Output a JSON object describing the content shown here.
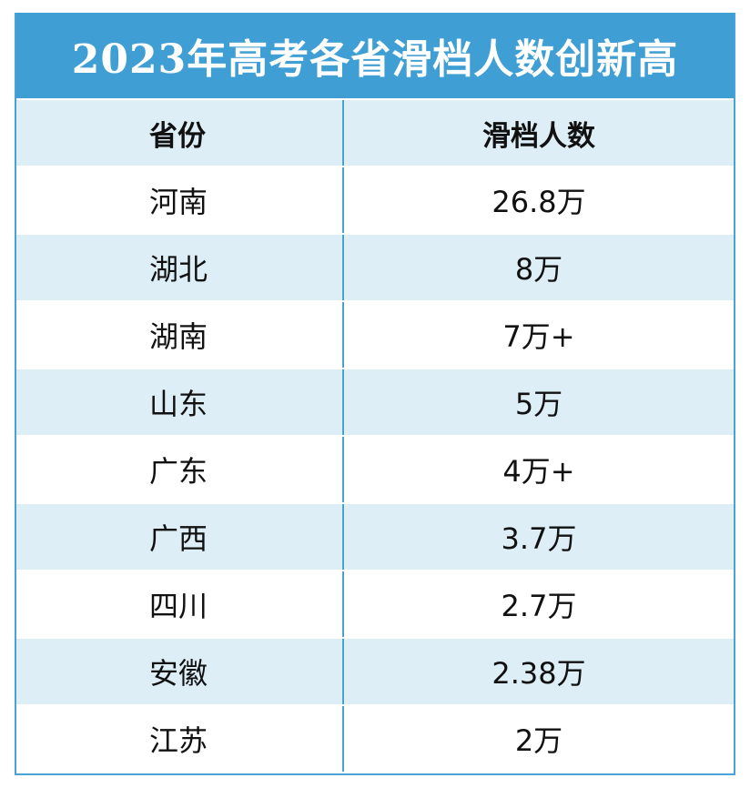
{
  "title": "2023年高考各省滑档人数创新高",
  "header": {
    "province": "省份",
    "count": "滑档人数"
  },
  "rows": [
    {
      "province": "河南",
      "count": "26.8万"
    },
    {
      "province": "湖北",
      "count": "8万"
    },
    {
      "province": "湖南",
      "count": "7万+"
    },
    {
      "province": "山东",
      "count": "5万"
    },
    {
      "province": "广东",
      "count": "4万+"
    },
    {
      "province": "广西",
      "count": "3.7万"
    },
    {
      "province": "四川",
      "count": "2.7万"
    },
    {
      "province": "安徽",
      "count": "2.38万"
    },
    {
      "province": "江苏",
      "count": "2万"
    }
  ],
  "colors": {
    "title_bg": "#3f9fd4",
    "row_shade": "#ddeef7",
    "border": "#4aa3d6"
  }
}
